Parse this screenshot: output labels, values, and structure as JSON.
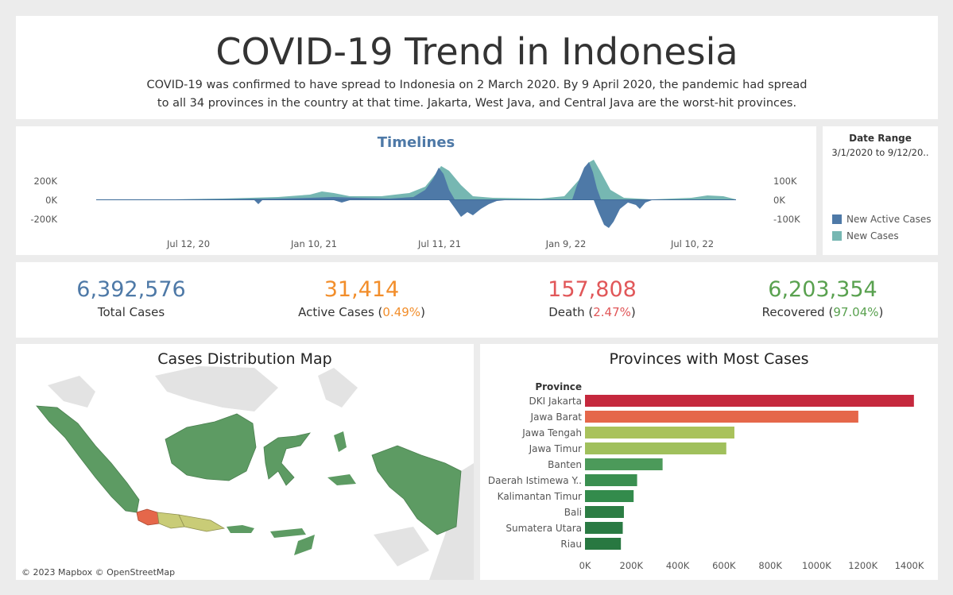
{
  "header": {
    "title": "COVID-19 Trend in Indonesia",
    "desc_line1": "COVID-19 was confirmed to have spread to Indonesia on 2 March 2020. By 9 April 2020, the pandemic had spread",
    "desc_line2": "to all 34 provinces in the country at that time. Jakarta, West Java, and Central Java are the worst-hit provinces."
  },
  "timeline": {
    "title": "Timelines",
    "left_ticks": [
      "200K",
      "0K",
      "-200K"
    ],
    "right_ticks": [
      "100K",
      "0K",
      "-100K"
    ],
    "x_ticks": [
      "Jul 12, 20",
      "Jan 10, 21",
      "Jul 11, 21",
      "Jan 9, 22",
      "Jul 10, 22"
    ]
  },
  "legend": {
    "title": "Date Range",
    "value": "3/1/2020 to 9/12/20..",
    "items": [
      {
        "label": "New Active Cases",
        "color": "#4e79a7"
      },
      {
        "label": "New Cases",
        "color": "#76b7b2"
      }
    ]
  },
  "kpis": [
    {
      "value": "6,392,576",
      "label": "Total Cases",
      "pct": "",
      "color": "#4e79a7"
    },
    {
      "value": "31,414",
      "label": "Active Cases",
      "pct": "0.49%",
      "color": "#f28e2b"
    },
    {
      "value": "157,808",
      "label": "Death",
      "pct": "2.47%",
      "color": "#e15759"
    },
    {
      "value": "6,203,354",
      "label": "Recovered",
      "pct": "97.04%",
      "color": "#59a14f"
    }
  ],
  "map": {
    "title": "Cases Distribution Map",
    "attribution": "© 2023 Mapbox © OpenStreetMap"
  },
  "chart_data": {
    "type": "bar",
    "orientation": "horizontal",
    "title": "Provinces with Most Cases",
    "ylabel": "Province",
    "categories": [
      "DKI Jakarta",
      "Jawa Barat",
      "Jawa Tengah",
      "Jawa Timur",
      "Banten",
      "Daerah Istimewa Y..",
      "Kalimantan Timur",
      "Bali",
      "Sumatera Utara",
      "Riau"
    ],
    "values": [
      1420000,
      1180000,
      645000,
      610000,
      335000,
      225000,
      210000,
      168000,
      163000,
      155000
    ],
    "colors": [
      "#c5283d",
      "#e5674a",
      "#a9c25b",
      "#a0c05c",
      "#4c9a5a",
      "#3a8f50",
      "#338b4c",
      "#2c7d44",
      "#2a7a43",
      "#287841"
    ],
    "x_ticks": [
      "0K",
      "200K",
      "400K",
      "600K",
      "800K",
      "1000K",
      "1200K",
      "1400K"
    ],
    "xlim": [
      0,
      1400000
    ],
    "grid": false
  }
}
